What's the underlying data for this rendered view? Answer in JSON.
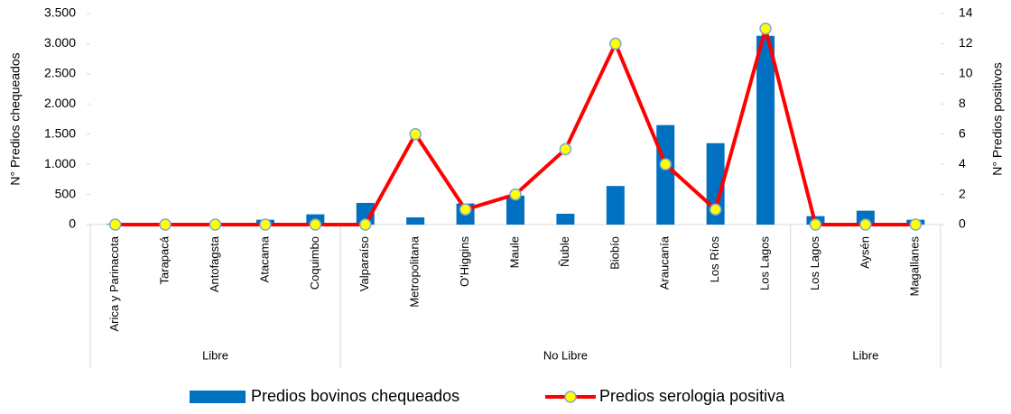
{
  "chart_data": {
    "type": "bar-line",
    "y_label": "N° Predios chequeados",
    "y2_label": "N° Predios positivos",
    "groups": [
      {
        "name": "Libre",
        "categories": [
          "Arica y Parinacota",
          "Tarapacá",
          "Antofagsta",
          "Atacama",
          "Coquimbo"
        ]
      },
      {
        "name": "No Libre",
        "categories": [
          "Valparaíso",
          "Metropolitana",
          "O'Higgins",
          "Maule",
          "Ñuble",
          "Biobío",
          "Araucanía",
          "Los Ríos",
          "Los Lagos"
        ]
      },
      {
        "name": "Libre",
        "categories": [
          "Los Lagos",
          "Aysén",
          "Magallanes"
        ]
      }
    ],
    "series": [
      {
        "name": "Predios bovinos chequeados",
        "type": "bar",
        "color": "#0070c0",
        "values": [
          10,
          0,
          0,
          80,
          170,
          360,
          120,
          350,
          480,
          180,
          640,
          1650,
          1350,
          3130,
          140,
          230,
          80
        ]
      },
      {
        "name": "Predios serologia positiva",
        "type": "line",
        "axis": "y2",
        "color": "#ff0000",
        "marker_color": "#ffff00",
        "values": [
          0,
          0,
          0,
          0,
          0,
          0,
          6,
          1,
          2,
          5,
          12,
          4,
          1,
          13,
          0,
          0,
          0
        ]
      }
    ],
    "ylim": [
      0,
      3500
    ],
    "yticks": [
      0,
      500,
      {
        "value": 1000,
        "label": "1.000"
      },
      {
        "value": 1500,
        "label": "1.500"
      },
      {
        "value": 2000,
        "label": "2.000"
      },
      {
        "value": 2500,
        "label": "2.500"
      },
      {
        "value": 3000,
        "label": "3.000"
      },
      {
        "value": 3500,
        "label": "3.500"
      }
    ],
    "y2lim": [
      0,
      14
    ],
    "y2ticks": [
      0,
      2,
      4,
      6,
      8,
      10,
      12,
      14
    ]
  }
}
